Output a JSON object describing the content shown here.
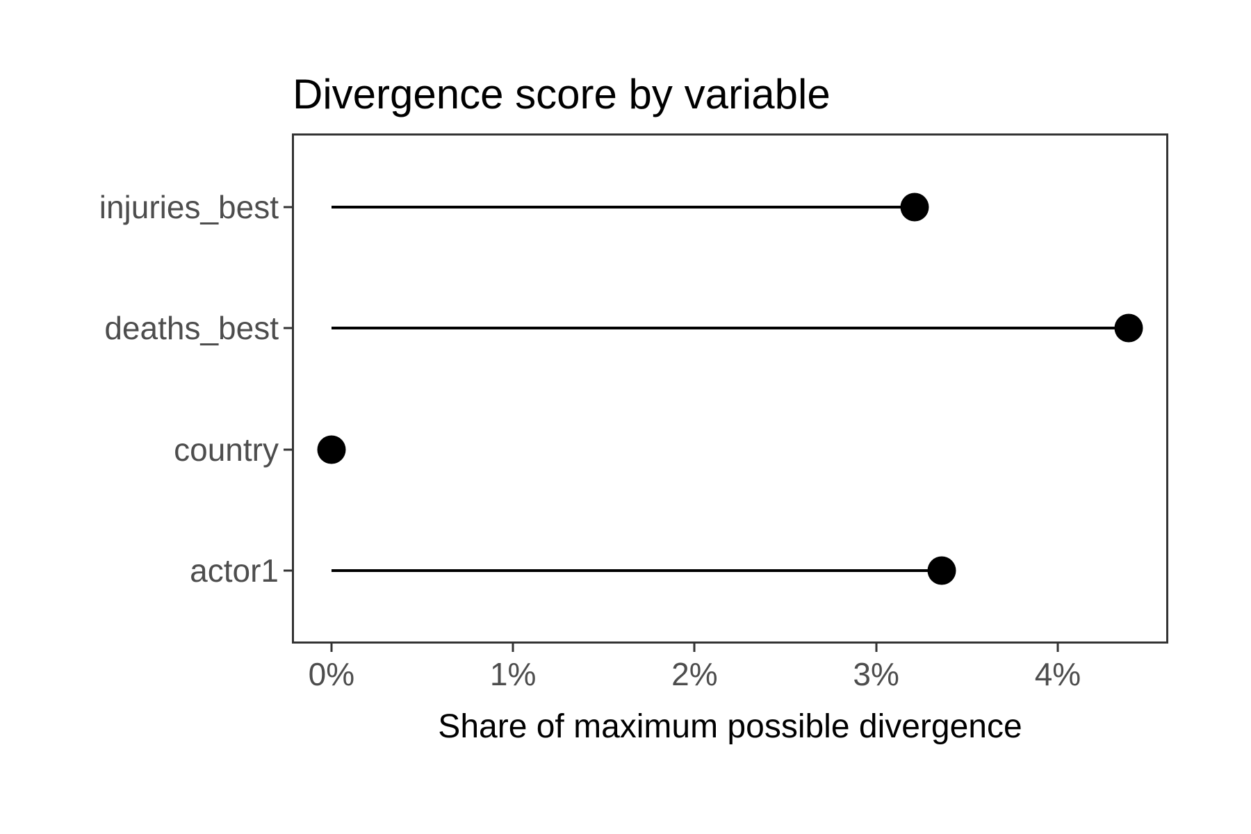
{
  "chart_data": {
    "type": "bar",
    "variant": "lollipop",
    "orientation": "horizontal",
    "title": "Divergence score by variable",
    "xlabel": "Share of maximum possible divergence",
    "ylabel": "",
    "categories": [
      "injuries_best",
      "deaths_best",
      "country",
      "actor1"
    ],
    "values": [
      3.21,
      4.39,
      0.0,
      3.36
    ],
    "unit": "%",
    "xlim": [
      -0.214,
      4.605
    ],
    "xticks": [
      0,
      1,
      2,
      3,
      4
    ],
    "xtick_labels": [
      "0%",
      "1%",
      "2%",
      "3%",
      "4%"
    ],
    "grid": false,
    "legend": false
  },
  "colors": {
    "point": "#000000",
    "stem": "#000000",
    "panel_border": "#333333",
    "tick_mark": "#333333",
    "tick_label": "#4d4d4d",
    "title": "#000000",
    "background": "#ffffff"
  }
}
